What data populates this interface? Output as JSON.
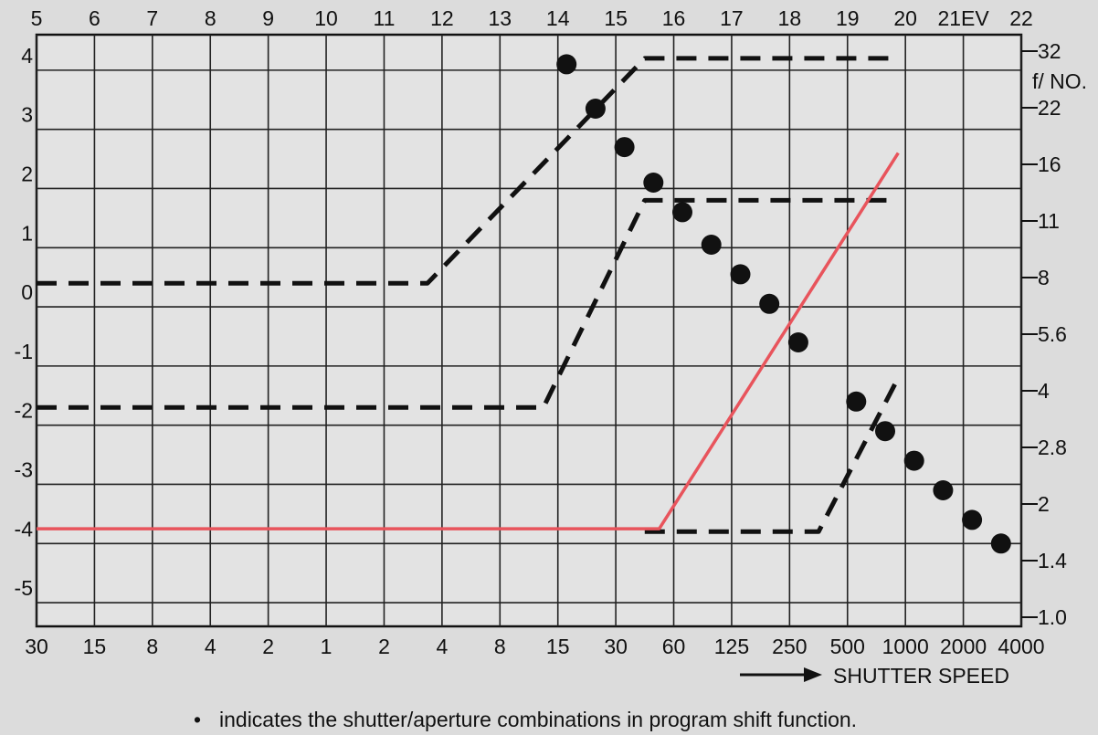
{
  "chart_data": {
    "type": "line",
    "top_axis": {
      "ticks": [
        "5",
        "6",
        "7",
        "8",
        "9",
        "10",
        "11",
        "12",
        "13",
        "14",
        "15",
        "16",
        "17",
        "18",
        "19",
        "20",
        "21EV",
        "22"
      ]
    },
    "left_axis": {
      "ticks": [
        "4",
        "3",
        "2",
        "1",
        "0",
        "-1",
        "-2",
        "-3",
        "-4",
        "-5"
      ]
    },
    "bottom_axis": {
      "ticks": [
        "30",
        "15",
        "8",
        "4",
        "2",
        "1",
        "2",
        "4",
        "8",
        "15",
        "30",
        "60",
        "125",
        "250",
        "500",
        "1000",
        "2000",
        "4000"
      ],
      "label": "SHUTTER SPEED"
    },
    "right_axis": {
      "ticks": [
        "32",
        "22",
        "16",
        "11",
        "8",
        "5.6",
        "4",
        "2.8",
        "2",
        "1.4",
        "1.0"
      ],
      "label": "f/ NO."
    },
    "series": [
      {
        "style": "dashed",
        "color": "#111111",
        "points": [
          [
            0,
            0.4
          ],
          [
            13.5,
            0.4
          ],
          [
            21,
            4.2
          ],
          [
            29,
            4.2
          ],
          [
            29.75,
            4.2
          ]
        ]
      },
      {
        "style": "dashed",
        "color": "#111111",
        "points": [
          [
            0,
            -1.7
          ],
          [
            17.5,
            -1.7
          ],
          [
            21,
            1.8
          ],
          [
            29,
            1.8
          ],
          [
            29.75,
            1.8
          ]
        ]
      },
      {
        "style": "dashed",
        "color": "#111111",
        "points": [
          [
            21,
            -3.8
          ],
          [
            27,
            -3.8
          ],
          [
            29.75,
            -1.2
          ]
        ]
      },
      {
        "style": "solid",
        "color": "#e8545c",
        "points": [
          [
            0,
            -3.75
          ],
          [
            21.5,
            -3.75
          ],
          [
            29.75,
            2.6
          ]
        ]
      }
    ],
    "program_shift_points": [
      [
        18.3,
        4.1
      ],
      [
        19.3,
        3.35
      ],
      [
        20.3,
        2.7
      ],
      [
        21.3,
        2.1
      ],
      [
        22.3,
        1.6
      ],
      [
        23.3,
        1.05
      ],
      [
        24.3,
        0.55
      ],
      [
        25.3,
        0.05
      ],
      [
        26.3,
        -0.6
      ],
      [
        28.3,
        -1.6
      ],
      [
        29.3,
        -2.1
      ],
      [
        30.3,
        -2.6
      ],
      [
        31.3,
        -3.1
      ],
      [
        32.3,
        -3.6
      ],
      [
        33.3,
        -4.0
      ]
    ],
    "footnote_marker": "•",
    "footnote": "indicates the shutter/aperture combinations in program shift function."
  }
}
